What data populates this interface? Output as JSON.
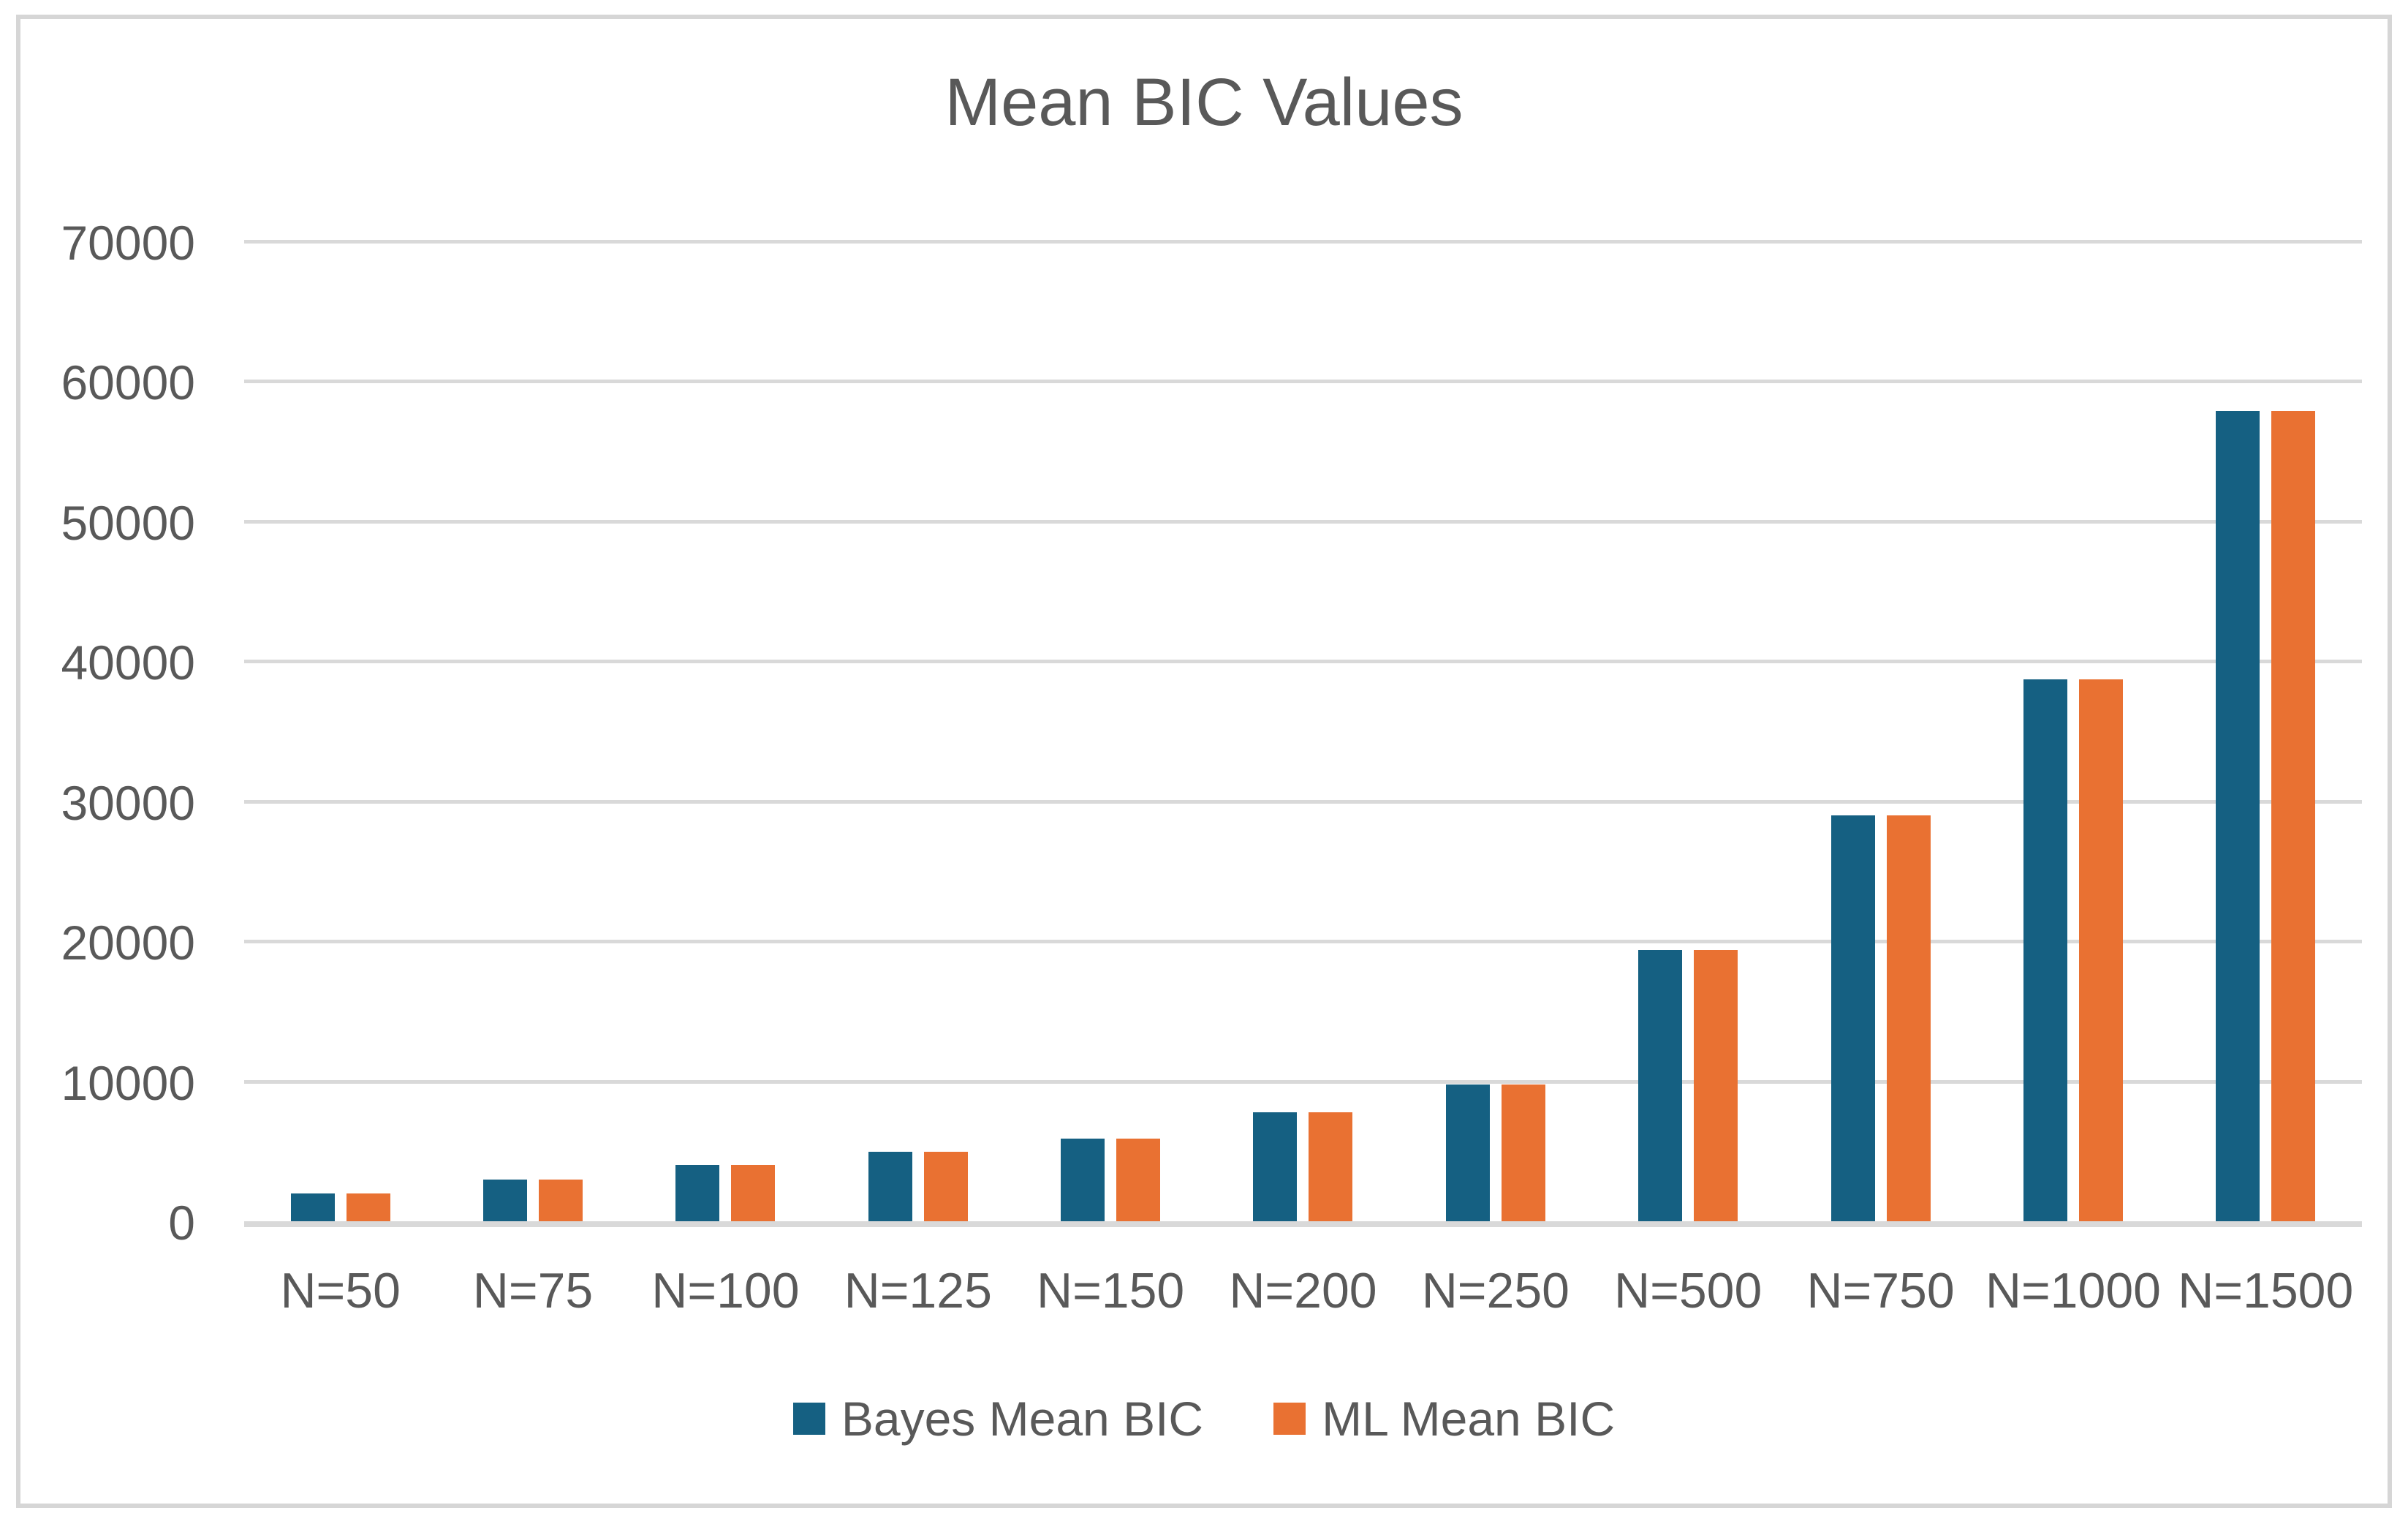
{
  "title": "Mean BIC Values",
  "colors": {
    "series_bayes": "#156082",
    "series_ml": "#E97132",
    "gridline": "#D9D9D9",
    "axis_text": "#595959",
    "chart_border": "#D6D6D6",
    "background": "#FFFFFF"
  },
  "chart_data": {
    "type": "bar",
    "title": "Mean BIC Values",
    "xlabel": "",
    "ylabel": "",
    "categories": [
      "N=50",
      "N=75",
      "N=100",
      "N=125",
      "N=150",
      "N=200",
      "N=250",
      "N=500",
      "N=750",
      "N=1000",
      "N=1500"
    ],
    "series": [
      {
        "name": "Bayes Mean BIC",
        "color": "#156082",
        "values": [
          2000,
          3000,
          4000,
          4950,
          5900,
          7800,
          9750,
          19400,
          29000,
          38700,
          57900
        ]
      },
      {
        "name": "ML Mean BIC",
        "color": "#E97132",
        "values": [
          2000,
          3000,
          4000,
          4950,
          5900,
          7800,
          9750,
          19400,
          29000,
          38700,
          57900
        ]
      }
    ],
    "ylim": [
      0,
      70000
    ],
    "ytick_step": 10000,
    "yticks": [
      0,
      10000,
      20000,
      30000,
      40000,
      50000,
      60000,
      70000
    ],
    "grid": true,
    "legend_position": "bottom"
  }
}
